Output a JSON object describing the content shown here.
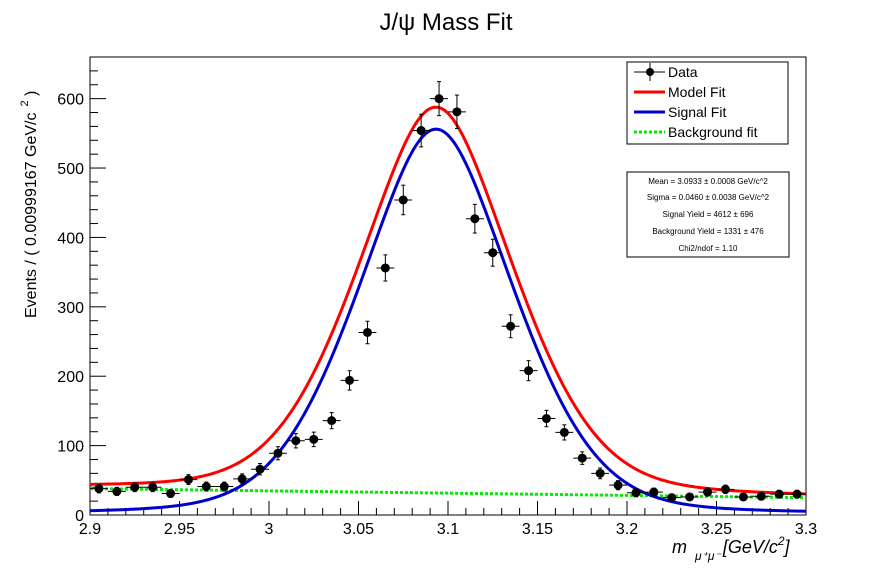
{
  "chart_data": {
    "type": "line",
    "title": "J/ψ Mass Fit",
    "xlabel_main": "m",
    "xlabel_sub": "μ⁺μ⁻",
    "xlabel_unit": "[GeV/c",
    "xlabel_unit_sup": "2",
    "xlabel_unit_end": "]",
    "ylabel": "Events / ( 0.00999167 GeV/c",
    "ylabel_sup": "2",
    "ylabel_end": " )",
    "xlim": [
      2.9,
      3.3
    ],
    "ylim": [
      0,
      660
    ],
    "x_ticks": [
      2.9,
      2.95,
      3.0,
      3.05,
      3.1,
      3.15,
      3.2,
      3.25,
      3.3
    ],
    "x_tick_labels": [
      "2.9",
      "2.95",
      "3",
      "3.05",
      "3.1",
      "3.15",
      "3.2",
      "3.25",
      "3.3"
    ],
    "y_ticks": [
      0,
      100,
      200,
      300,
      400,
      500,
      600
    ],
    "y_tick_labels": [
      "0",
      "100",
      "200",
      "300",
      "400",
      "500",
      "600"
    ],
    "legend": {
      "position": "top-right",
      "entries": [
        {
          "label": "Data",
          "style": "marker",
          "color": "#000000"
        },
        {
          "label": "Model Fit",
          "style": "line",
          "color": "#ff0000"
        },
        {
          "label": "Signal Fit",
          "style": "line",
          "color": "#0000cc"
        },
        {
          "label": "Background fit",
          "style": "dotted",
          "color": "#00ee00"
        }
      ]
    },
    "stats": [
      "Mean = 3.0933 ± 0.0008 GeV/c^2",
      "Sigma = 0.0460 ± 0.0038 GeV/c^2",
      "Signal Yield = 4612 ± 696",
      "Background Yield = 1331 ± 476",
      "Chi2/ndof = 1.10"
    ],
    "data_points": {
      "x": [
        2.905,
        2.915,
        2.925,
        2.935,
        2.945,
        2.955,
        2.965,
        2.975,
        2.985,
        2.995,
        3.005,
        3.015,
        3.025,
        3.035,
        3.045,
        3.055,
        3.065,
        3.075,
        3.085,
        3.095,
        3.105,
        3.115,
        3.125,
        3.135,
        3.145,
        3.155,
        3.165,
        3.175,
        3.185,
        3.195,
        3.205,
        3.215,
        3.225,
        3.235,
        3.245,
        3.255,
        3.265,
        3.275,
        3.285,
        3.295
      ],
      "y": [
        38,
        34,
        40,
        40,
        31,
        51,
        41,
        41,
        52,
        66,
        89,
        107,
        109,
        136,
        194,
        263,
        356,
        454,
        554,
        600,
        581,
        427,
        378,
        272,
        208,
        139,
        119,
        82,
        60,
        43,
        32,
        33,
        25,
        26,
        33,
        37,
        26,
        27,
        30,
        30
      ],
      "x_err": 0.005
    },
    "series": [
      {
        "name": "Model Fit",
        "color": "#ff0000",
        "kind": "model"
      },
      {
        "name": "Signal Fit",
        "color": "#0000cc",
        "kind": "signal"
      },
      {
        "name": "Background fit",
        "color": "#00ee00",
        "kind": "background"
      }
    ],
    "fit": {
      "mean": 3.0933,
      "sigma": 0.046,
      "signal_peak": 556,
      "bg_start": 38,
      "bg_end": 25
    }
  }
}
